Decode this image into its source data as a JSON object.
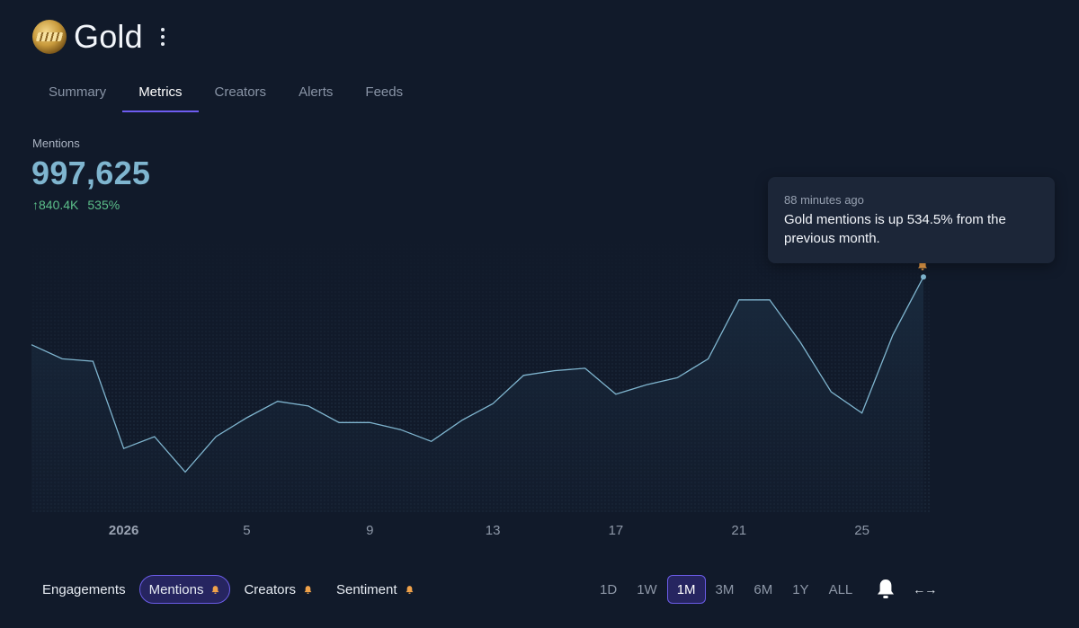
{
  "header": {
    "title": "Gold",
    "tabs": [
      "Summary",
      "Metrics",
      "Creators",
      "Alerts",
      "Feeds"
    ],
    "active_tab": "Metrics"
  },
  "metric": {
    "label": "Mentions",
    "value": "997,625",
    "change_abs": "↑840.4K",
    "change_pct": "535%"
  },
  "tooltip": {
    "time": "88 minutes ago",
    "message": "Gold mentions is up 534.5% from the previous month."
  },
  "chart_data": {
    "type": "area",
    "title": "Mentions",
    "x": [
      0,
      1,
      2,
      3,
      4,
      5,
      6,
      7,
      8,
      9,
      10,
      11,
      12,
      13,
      14,
      15,
      16,
      17,
      18,
      19,
      20,
      21,
      22,
      23,
      24,
      25,
      26,
      27,
      28,
      29
    ],
    "values": [
      710000,
      650000,
      640000,
      270000,
      320000,
      170000,
      320000,
      400000,
      470000,
      450000,
      380000,
      380000,
      350000,
      300000,
      390000,
      460000,
      580000,
      600000,
      610000,
      500000,
      540000,
      570000,
      650000,
      900000,
      900000,
      720000,
      510000,
      420000,
      750000,
      997625
    ],
    "xtick_labels": [
      "2026",
      "5",
      "9",
      "13",
      "17",
      "21",
      "25"
    ],
    "xtick_positions": [
      3,
      7,
      11,
      15,
      19,
      23,
      27
    ],
    "ylim": [
      0,
      1250000
    ],
    "color": "#7fb5cf",
    "alert_marker_index": 29
  },
  "bottom": {
    "metrics": [
      {
        "label": "Mentions",
        "alert": true,
        "active": true
      },
      {
        "label": "Creators",
        "alert": true,
        "active": false
      },
      {
        "label": "Sentiment",
        "alert": true,
        "active": false
      }
    ],
    "engagements_label": "Engagements",
    "ranges": [
      "1D",
      "1W",
      "1M",
      "3M",
      "6M",
      "1Y",
      "ALL"
    ],
    "active_range": "1M",
    "expand_label": "←→"
  },
  "colors": {
    "accent": "#6e5cf0",
    "line": "#7fb5cf",
    "positive": "#5cbf8a",
    "bell": "#f0a24a"
  }
}
